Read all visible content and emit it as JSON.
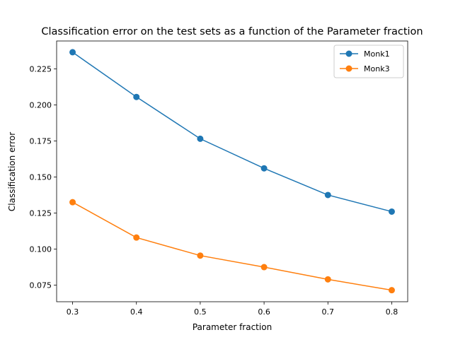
{
  "chart_data": {
    "type": "line",
    "title": "Classification error on the test sets as a function of the Parameter fraction",
    "xlabel": "Parameter fraction",
    "ylabel": "Classification error",
    "x": [
      0.3,
      0.4,
      0.5,
      0.6,
      0.7,
      0.8
    ],
    "xlim": [
      0.275,
      0.825
    ],
    "ylim": [
      0.0635,
      0.2443
    ],
    "xticks": [
      "0.3",
      "0.4",
      "0.5",
      "0.6",
      "0.7",
      "0.8"
    ],
    "yticks": [
      "0.075",
      "0.100",
      "0.125",
      "0.150",
      "0.175",
      "0.200",
      "0.225"
    ],
    "grid": false,
    "legend_position": "top-right",
    "series": [
      {
        "name": "Monk1",
        "color": "#1f77b4",
        "marker": "circle",
        "values": [
          0.2365,
          0.2055,
          0.1765,
          0.156,
          0.1375,
          0.126
        ]
      },
      {
        "name": "Monk3",
        "color": "#ff7f0e",
        "marker": "circle",
        "values": [
          0.1325,
          0.108,
          0.0955,
          0.0875,
          0.079,
          0.0715
        ]
      }
    ]
  }
}
